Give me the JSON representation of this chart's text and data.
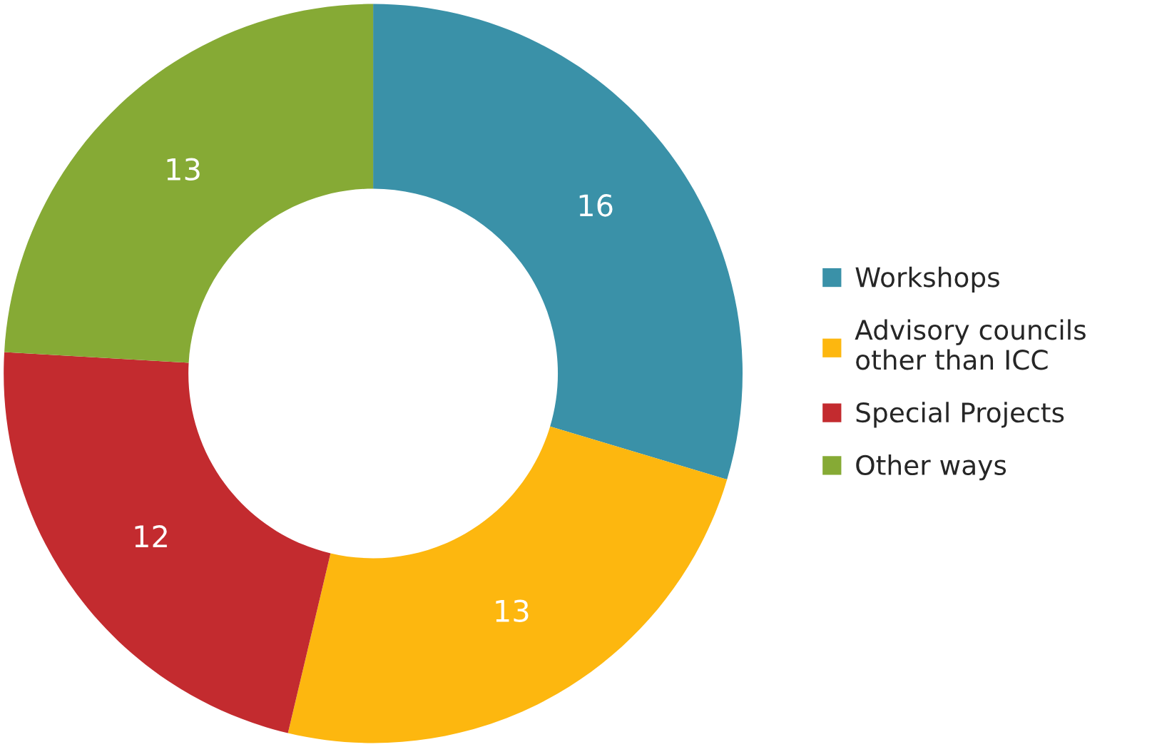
{
  "chart_data": {
    "type": "donut",
    "categories": [
      "Workshops",
      "Advisory councils\nother than ICC",
      "Special Projects",
      "Other ways"
    ],
    "values": [
      16,
      13,
      12,
      13
    ],
    "colors": [
      "#3a91a8",
      "#fdb70f",
      "#c32b2f",
      "#86aa35"
    ],
    "data_labels": true,
    "legend": "right"
  }
}
